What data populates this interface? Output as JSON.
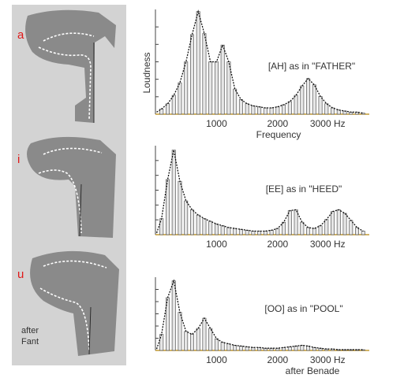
{
  "tract_panel": {
    "vowel_labels": [
      "a",
      "i",
      "u"
    ],
    "credit": [
      "after",
      "Fant"
    ]
  },
  "colors": {
    "panel_bg": "#d3d3d3",
    "tract": "#8a8a8a",
    "vowel_label": "#e01818",
    "bar_fill": "#e6e6e6",
    "envelope": "#111111"
  },
  "chart_data": [
    {
      "type": "bar",
      "annotation": "[AH] as in \"FATHER\"",
      "ylabel": "Loudness",
      "xlabel": "Frequency",
      "xticks": [
        "1000",
        "2000",
        "3000 Hz"
      ],
      "tick_values": [
        1000,
        2000,
        3000
      ],
      "xlim": [
        0,
        3500
      ],
      "ylim": [
        0,
        100
      ],
      "grid": false,
      "formant_peaks_hz": [
        700,
        1100,
        2500
      ],
      "x": [
        100,
        200,
        300,
        400,
        500,
        600,
        700,
        800,
        900,
        1000,
        1100,
        1200,
        1300,
        1400,
        1500,
        1600,
        1700,
        1800,
        1900,
        2000,
        2100,
        2200,
        2300,
        2400,
        2500,
        2600,
        2700,
        2800,
        2900,
        3000,
        3100,
        3200,
        3300,
        3400
      ],
      "values": [
        5,
        10,
        18,
        30,
        50,
        76,
        98,
        77,
        50,
        50,
        66,
        50,
        24,
        14,
        10,
        8,
        7,
        6,
        6,
        7,
        9,
        12,
        18,
        27,
        34,
        28,
        17,
        10,
        6,
        4,
        3,
        2,
        2,
        1
      ]
    },
    {
      "type": "bar",
      "annotation": "[EE] as in \"HEED\"",
      "ylabel": "",
      "xlabel": "",
      "xticks": [
        "1000",
        "2000",
        "3000 Hz"
      ],
      "tick_values": [
        1000,
        2000,
        3000
      ],
      "xlim": [
        0,
        3500
      ],
      "ylim": [
        0,
        100
      ],
      "grid": false,
      "formant_peaks_hz": [
        300,
        2200,
        3000
      ],
      "x": [
        100,
        200,
        300,
        400,
        500,
        600,
        700,
        800,
        900,
        1000,
        1100,
        1200,
        1300,
        1400,
        1500,
        1600,
        1700,
        1800,
        1900,
        2000,
        2100,
        2200,
        2300,
        2400,
        2500,
        2600,
        2700,
        2800,
        2900,
        3000,
        3100,
        3200,
        3300,
        3400
      ],
      "values": [
        18,
        62,
        95,
        60,
        38,
        28,
        22,
        18,
        15,
        12,
        10,
        8,
        7,
        6,
        5,
        4,
        4,
        4,
        5,
        7,
        14,
        27,
        28,
        14,
        8,
        7,
        10,
        17,
        26,
        28,
        24,
        16,
        8,
        4
      ]
    },
    {
      "type": "bar",
      "annotation": "[OO] as in \"POOL\"",
      "ylabel": "",
      "xlabel": "after Benade",
      "xticks": [
        "1000",
        "2000",
        "3000 Hz"
      ],
      "tick_values": [
        1000,
        2000,
        3000
      ],
      "xlim": [
        0,
        3500
      ],
      "ylim": [
        0,
        100
      ],
      "grid": false,
      "formant_peaks_hz": [
        300,
        800,
        2400
      ],
      "x": [
        100,
        200,
        300,
        400,
        500,
        600,
        700,
        800,
        900,
        1000,
        1100,
        1200,
        1300,
        1400,
        1500,
        1600,
        1700,
        1800,
        1900,
        2000,
        2100,
        2200,
        2300,
        2400,
        2500,
        2600,
        2700,
        2800,
        2900,
        3000,
        3100,
        3200,
        3300,
        3400
      ],
      "values": [
        22,
        72,
        95,
        52,
        26,
        22,
        30,
        44,
        30,
        16,
        11,
        9,
        7,
        6,
        5,
        4,
        4,
        3,
        3,
        3,
        4,
        5,
        6,
        7,
        6,
        4,
        3,
        2,
        2,
        1,
        1,
        1,
        1,
        1
      ]
    }
  ]
}
